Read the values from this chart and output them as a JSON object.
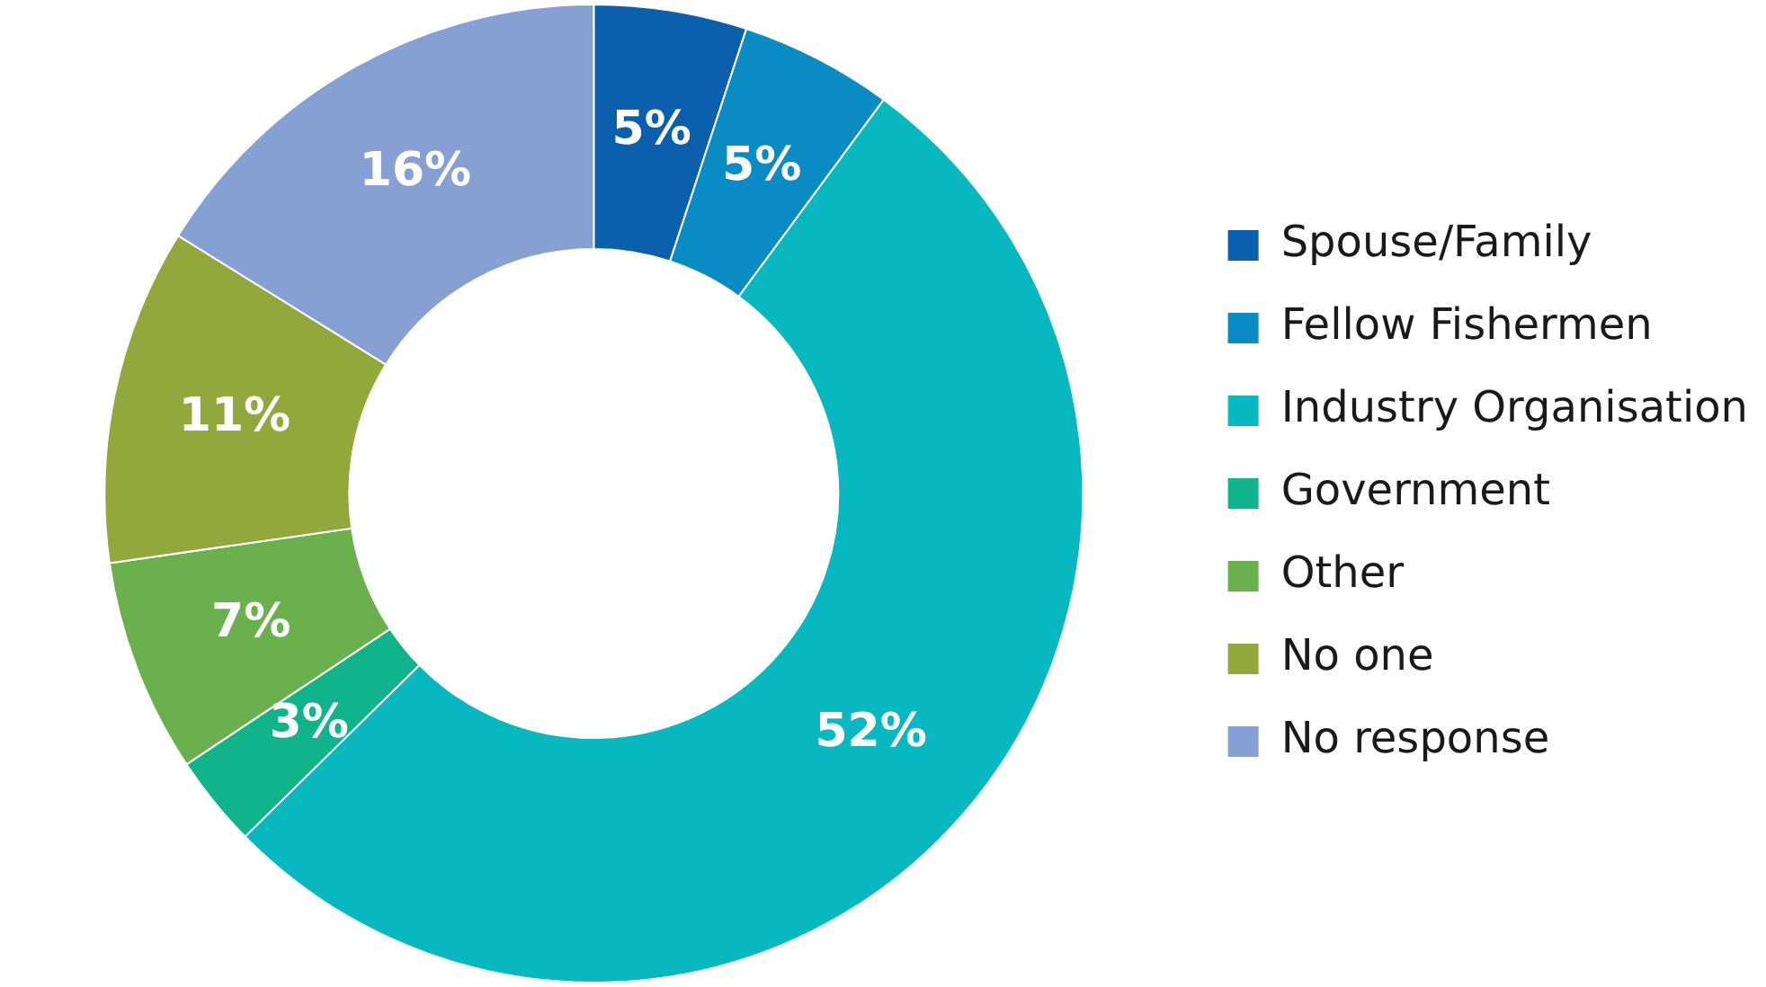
{
  "chart_data": {
    "type": "donut",
    "categories": [
      "Spouse/Family",
      "Fellow Fishermen",
      "Industry Organisation",
      "Government",
      "Other",
      "No one",
      "No response"
    ],
    "values": [
      5,
      5,
      52,
      3,
      7,
      11,
      16
    ],
    "colors": [
      "#0b5fad",
      "#0a8bc4",
      "#08b8c0",
      "#10b38a",
      "#6ab04c",
      "#93a83c",
      "#87a0d4"
    ],
    "value_labels": [
      "5%",
      "5%",
      "52%",
      "3%",
      "7%",
      "11%",
      "16%"
    ],
    "legend": "right"
  }
}
